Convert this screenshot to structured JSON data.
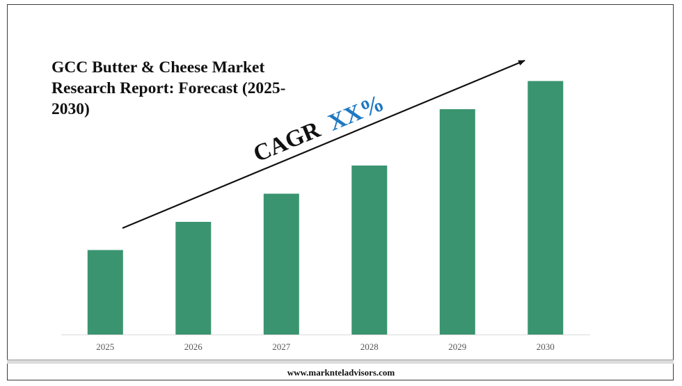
{
  "title": "GCC Butter & Cheese Market Research Report: Forecast (2025-2030)",
  "annotation": {
    "prefix": "CAGR",
    "value": "XX%"
  },
  "footer": {
    "website": "www.marknteladvisors.com"
  },
  "colors": {
    "bar": "#3a9470",
    "cagr_value": "#1f78c1",
    "text": "#111111"
  },
  "chart_data": {
    "type": "bar",
    "title": "GCC Butter & Cheese Market Research Report: Forecast (2025-2030)",
    "categories": [
      "2025",
      "2026",
      "2027",
      "2028",
      "2029",
      "2030"
    ],
    "values": [
      30,
      40,
      50,
      60,
      80,
      90
    ],
    "value_scale": "relative (no y-axis or values printed)",
    "xlabel": "",
    "ylabel": "",
    "ylim": [
      0,
      100
    ],
    "grid": false,
    "legend": "none",
    "annotations": [
      "CAGR XX%"
    ]
  }
}
